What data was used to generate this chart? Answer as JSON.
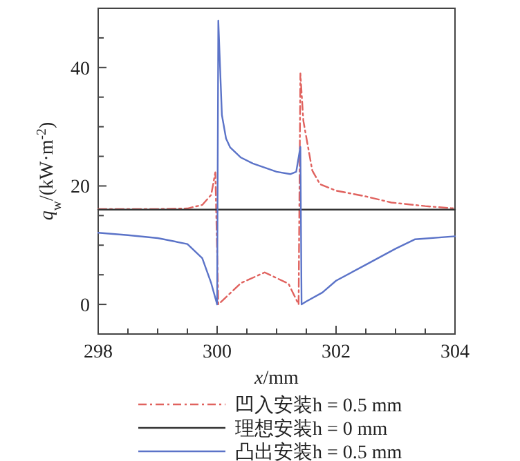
{
  "chart_data": {
    "type": "line",
    "xlabel": "*x*/mm",
    "ylabel": "*q*$_{w}$/(kW·m$^{-2}$)",
    "xlim": [
      298,
      304
    ],
    "ylim": [
      -5,
      50
    ],
    "xticks": [
      298,
      {
        "value": 298.5,
        "label": null
      },
      {
        "value": 299,
        "label": null
      },
      {
        "value": 299.5,
        "label": null
      },
      300,
      {
        "value": 300.5,
        "label": null
      },
      {
        "value": 301,
        "label": null
      },
      {
        "value": 301.5,
        "label": null
      },
      302,
      {
        "value": 302.5,
        "label": null
      },
      {
        "value": 303,
        "label": null
      },
      {
        "value": 303.5,
        "label": null
      },
      304
    ],
    "yticks": [
      {
        "value": -5,
        "label": null
      },
      0,
      {
        "value": 5,
        "label": null
      },
      {
        "value": 10,
        "label": null
      },
      {
        "value": 15,
        "label": null
      },
      20,
      {
        "value": 25,
        "label": null
      },
      {
        "value": 30,
        "label": null
      },
      {
        "value": 35,
        "label": null
      },
      40,
      {
        "value": 45,
        "label": null
      }
    ],
    "legend": "bottom",
    "series": [
      {
        "name": "凹入安装h = 0.5 mm",
        "color": "#e0625e",
        "line_style": "dashed",
        "x": [
          298,
          299,
          299.5,
          299.75,
          299.9,
          299.97,
          300.02,
          300.4,
          300.8,
          301.2,
          301.37,
          301.4,
          301.45,
          301.6,
          301.73,
          302,
          302.47,
          302.93,
          303.5,
          304
        ],
        "values": [
          16.1,
          16.1,
          16.2,
          16.8,
          18.5,
          22.3,
          0,
          3.6,
          5.4,
          3.5,
          0,
          39,
          31,
          22.6,
          20.3,
          19.2,
          18.3,
          17.2,
          16.6,
          16.2
        ]
      },
      {
        "name": "理想安装h = 0 mm",
        "color": "#333333",
        "line_style": "solid",
        "x": [
          298,
          304
        ],
        "values": [
          16,
          16
        ]
      },
      {
        "name": "凸出安装h = 0.5 mm",
        "color": "#5b73c8",
        "line_style": "solid",
        "x": [
          298,
          298.5,
          299,
          299.5,
          299.75,
          299.9,
          300,
          300.02,
          300.08,
          300.15,
          300.22,
          300.4,
          300.6,
          301,
          301.23,
          301.33,
          301.4,
          301.42,
          301.5,
          301.77,
          302,
          302.5,
          303,
          303.33,
          304
        ],
        "values": [
          12.1,
          11.7,
          11.2,
          10.2,
          7.8,
          3.6,
          0,
          47.9,
          32,
          28,
          26.5,
          24.8,
          23.8,
          22.4,
          22,
          22.4,
          26.6,
          0,
          0.5,
          2,
          4,
          6.7,
          9.4,
          11,
          11.5
        ]
      }
    ]
  }
}
